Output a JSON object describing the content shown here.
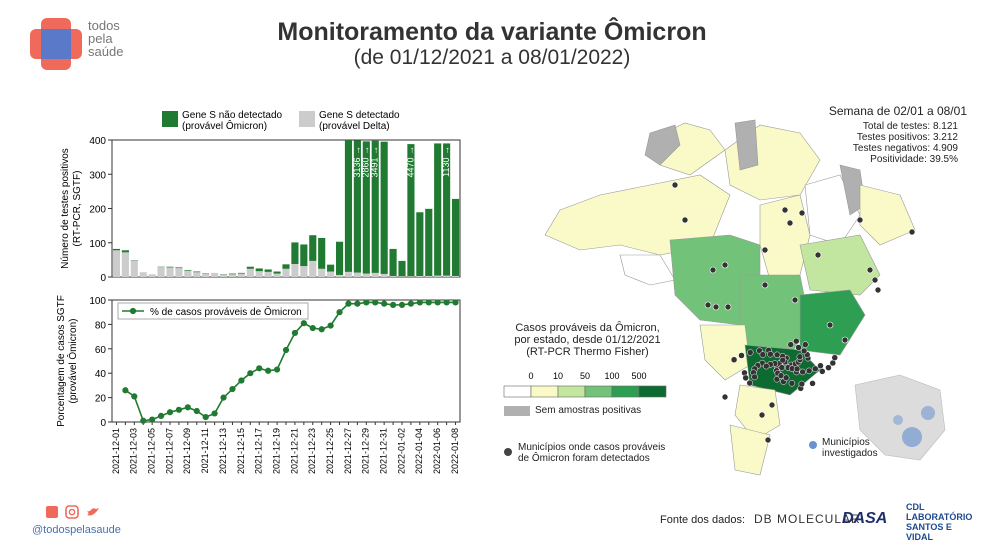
{
  "header": {
    "title": "Monitoramento da variante Ômicron",
    "subtitle": "(de 01/12/2021 a 08/01/2022)",
    "logo_lines": [
      "todos",
      "pela",
      "saúde"
    ]
  },
  "footer": {
    "handle": "@todospelasaude",
    "source_label": "Fonte dos dados:",
    "sources": [
      "DB MOLECULAR",
      "DASA",
      "CDL LABORATÓRIO SANTOS E VIDAL"
    ]
  },
  "map": {
    "week_title": "Semana de 02/01 a 08/01",
    "stats": [
      "Total de testes: 8.121",
      "Testes positivos: 3.212",
      "Testes negativos: 4.909",
      "Positividade: 39.5%"
    ],
    "legend_title": [
      "Casos prováveis da Ômicron,",
      "por estado, desde 01/12/2021",
      "(RT-PCR Thermo Fisher)"
    ],
    "scale_ticks": [
      "0",
      "10",
      "50",
      "100",
      "500"
    ],
    "scale_colors": [
      "#ffffff",
      "#fafac8",
      "#c2e6a0",
      "#72c27a",
      "#2e9f52",
      "#0d6b32"
    ],
    "no_samples_label": "Sem amostras positivas",
    "no_samples_color": "#b0b0b0",
    "municipios_label": [
      "Municípios onde casos prováveis",
      "de Ômicron foram detectados"
    ],
    "investigated_label": [
      "Municípios",
      "investigados"
    ]
  },
  "chart_data": [
    {
      "type": "bar",
      "stacked": true,
      "title": "",
      "ylabel": "Número de testes positivos (RT-PCR, SGTF)",
      "ylim": [
        0,
        400
      ],
      "yticks": [
        0,
        100,
        200,
        300,
        400
      ],
      "grid": false,
      "legend": "top",
      "categories": [
        "2021-12-01",
        "2021-12-02",
        "2021-12-03",
        "2021-12-04",
        "2021-12-05",
        "2021-12-06",
        "2021-12-07",
        "2021-12-08",
        "2021-12-09",
        "2021-12-10",
        "2021-12-11",
        "2021-12-12",
        "2021-12-13",
        "2021-12-14",
        "2021-12-15",
        "2021-12-16",
        "2021-12-17",
        "2021-12-18",
        "2021-12-19",
        "2021-12-20",
        "2021-12-21",
        "2021-12-22",
        "2021-12-23",
        "2021-12-24",
        "2021-12-25",
        "2021-12-26",
        "2021-12-27",
        "2021-12-28",
        "2021-12-29",
        "2021-12-30",
        "2021-12-31",
        "2022-01-01",
        "2022-01-02",
        "2022-01-03",
        "2022-01-04",
        "2022-01-05",
        "2022-01-06",
        "2022-01-07",
        "2022-01-08"
      ],
      "series": [
        {
          "name": "Gene S não detectado (provável Ômicron)",
          "color": "#217a32",
          "values": [
            4,
            6,
            1,
            0,
            0,
            1,
            2,
            2,
            2,
            2,
            1,
            0,
            1,
            2,
            2,
            6,
            8,
            7,
            6,
            13,
            63,
            63,
            75,
            90,
            20,
            97,
            385,
            386,
            386,
            386,
            386,
            79,
            45,
            386,
            186,
            196,
            386,
            386,
            225
          ]
        },
        {
          "name": "Gene S detectado (provável Delta)",
          "color": "#cccccc",
          "values": [
            78,
            72,
            48,
            14,
            8,
            29,
            28,
            26,
            18,
            14,
            10,
            12,
            7,
            8,
            10,
            24,
            17,
            15,
            10,
            24,
            38,
            32,
            47,
            24,
            16,
            6,
            15,
            13,
            10,
            12,
            9,
            3,
            2,
            2,
            3,
            3,
            4,
            4,
            3
          ]
        }
      ],
      "annotations": [
        {
          "x": "2021-12-28",
          "text": "3136 →"
        },
        {
          "x": "2021-12-29",
          "text": "2860 →"
        },
        {
          "x": "2021-12-30",
          "text": "3491 →"
        },
        {
          "x": "2022-01-03",
          "text": "4470 →"
        },
        {
          "x": "2022-01-07",
          "text": "1130 →"
        }
      ]
    },
    {
      "type": "line",
      "title": "",
      "xlabel": "",
      "ylabel": "Porcentagem de casos SGTF (provável Ômicron)",
      "ylim": [
        0,
        100
      ],
      "yticks": [
        0,
        20,
        40,
        60,
        80,
        100
      ],
      "grid": false,
      "legend": "top-left",
      "x": [
        "2021-12-01",
        "2021-12-02",
        "2021-12-03",
        "2021-12-04",
        "2021-12-05",
        "2021-12-06",
        "2021-12-07",
        "2021-12-08",
        "2021-12-09",
        "2021-12-10",
        "2021-12-11",
        "2021-12-12",
        "2021-12-13",
        "2021-12-14",
        "2021-12-15",
        "2021-12-16",
        "2021-12-17",
        "2021-12-18",
        "2021-12-19",
        "2021-12-20",
        "2021-12-21",
        "2021-12-22",
        "2021-12-23",
        "2021-12-24",
        "2021-12-25",
        "2021-12-26",
        "2021-12-27",
        "2021-12-28",
        "2021-12-29",
        "2021-12-30",
        "2021-12-31",
        "2022-01-01",
        "2022-01-02",
        "2022-01-03",
        "2022-01-04",
        "2022-01-05",
        "2022-01-06",
        "2022-01-07",
        "2022-01-08"
      ],
      "tick_labels": [
        "2021-12-01",
        "2021-12-03",
        "2021-12-05",
        "2021-12-07",
        "2021-12-09",
        "2021-12-11",
        "2021-12-13",
        "2021-12-15",
        "2021-12-17",
        "2021-12-19",
        "2021-12-21",
        "2021-12-23",
        "2021-12-25",
        "2021-12-27",
        "2021-12-29",
        "2021-12-31",
        "2022-01-02",
        "2022-01-04",
        "2022-01-06",
        "2022-01-08"
      ],
      "series": [
        {
          "name": "% de casos prováveis de Ômicron",
          "color": "#217a32",
          "values": [
            null,
            26,
            21,
            1,
            2,
            5,
            8,
            10,
            12,
            9,
            4,
            7,
            20,
            27,
            34,
            40,
            44,
            42,
            43,
            59,
            73,
            81,
            77,
            76,
            79,
            90,
            97,
            97,
            98,
            98,
            97,
            96,
            96,
            97,
            98,
            98,
            98,
            98,
            98
          ]
        }
      ]
    }
  ]
}
